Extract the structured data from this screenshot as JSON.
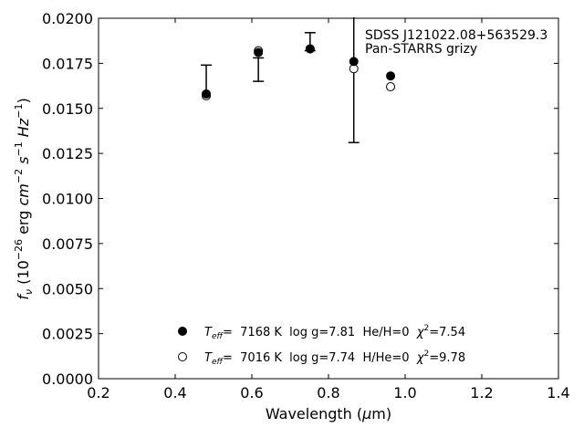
{
  "chart_data": {
    "type": "scatter",
    "title": "",
    "xlabel": "Wavelength (μm)",
    "xlabel_parts": {
      "pre": "Wavelength (",
      "mu": "μ",
      "post": "m)"
    },
    "ylabel": "f_ν (10^-26 erg cm^-2 s^-1 Hz^-1)",
    "ylabel_parts": {
      "f": "f",
      "nu": "ν",
      "open": " (10",
      "exp26": "−26",
      "erg": " erg ",
      "cm": "cm",
      "exp2": "−2",
      "s": " s",
      "exp1": "−1",
      "hz": " Hz",
      "exp1b": "−1",
      "close": ")"
    },
    "xlim": [
      0.2,
      1.4
    ],
    "ylim": [
      0.0,
      0.02
    ],
    "xticks": [
      "0.2",
      "0.4",
      "0.6",
      "0.8",
      "1.0",
      "1.2",
      "1.4"
    ],
    "xtick_values": [
      0.2,
      0.4,
      0.6,
      0.8,
      1.0,
      1.2,
      1.4
    ],
    "yticks": [
      "0.0000",
      "0.0025",
      "0.0050",
      "0.0075",
      "0.0100",
      "0.0125",
      "0.0150",
      "0.0175",
      "0.0200"
    ],
    "ytick_values": [
      0.0,
      0.0025,
      0.005,
      0.0075,
      0.01,
      0.0125,
      0.015,
      0.0175,
      0.02
    ],
    "grid": false,
    "annotation": [
      "SDSS J121022.08+563529.3",
      "Pan-STARRS grizy"
    ],
    "annotation_position": "top-right",
    "observed": {
      "x": [
        0.481,
        0.617,
        0.752,
        0.866
      ],
      "y": [
        0.0159,
        0.0182,
        0.0183,
        0.0177
      ],
      "ylow": [
        0.0157,
        0.0165,
        0.0182,
        0.0131
      ],
      "yhigh": [
        0.0174,
        0.0178,
        0.0192,
        0.0201
      ],
      "cap_low": [
        false,
        true,
        true,
        true
      ],
      "cap_high": [
        true,
        true,
        true,
        false
      ]
    },
    "series": [
      {
        "marker": "filled-circle",
        "x": [
          0.481,
          0.617,
          0.752,
          0.866,
          0.962
        ],
        "y": [
          0.0158,
          0.0181,
          0.0183,
          0.0176,
          0.0168
        ],
        "legend": {
          "teff_pre": "T",
          "teff_sub": "eff",
          "rest": "=  7168 K  log g=7.81  He/H=0  ",
          "chi": "χ",
          "chi_sup": "2",
          "chi_val": "=7.54"
        }
      },
      {
        "marker": "open-circle",
        "x": [
          0.481,
          0.617,
          0.752,
          0.866,
          0.962
        ],
        "y": [
          0.0157,
          0.0182,
          0.0183,
          0.0172,
          0.0162
        ],
        "legend": {
          "teff_pre": "T",
          "teff_sub": "eff",
          "rest": "=  7016 K  log g=7.74  H/He=0  ",
          "chi": "χ",
          "chi_sup": "2",
          "chi_val": "=9.78"
        }
      }
    ],
    "legend_position": "lower-center"
  }
}
